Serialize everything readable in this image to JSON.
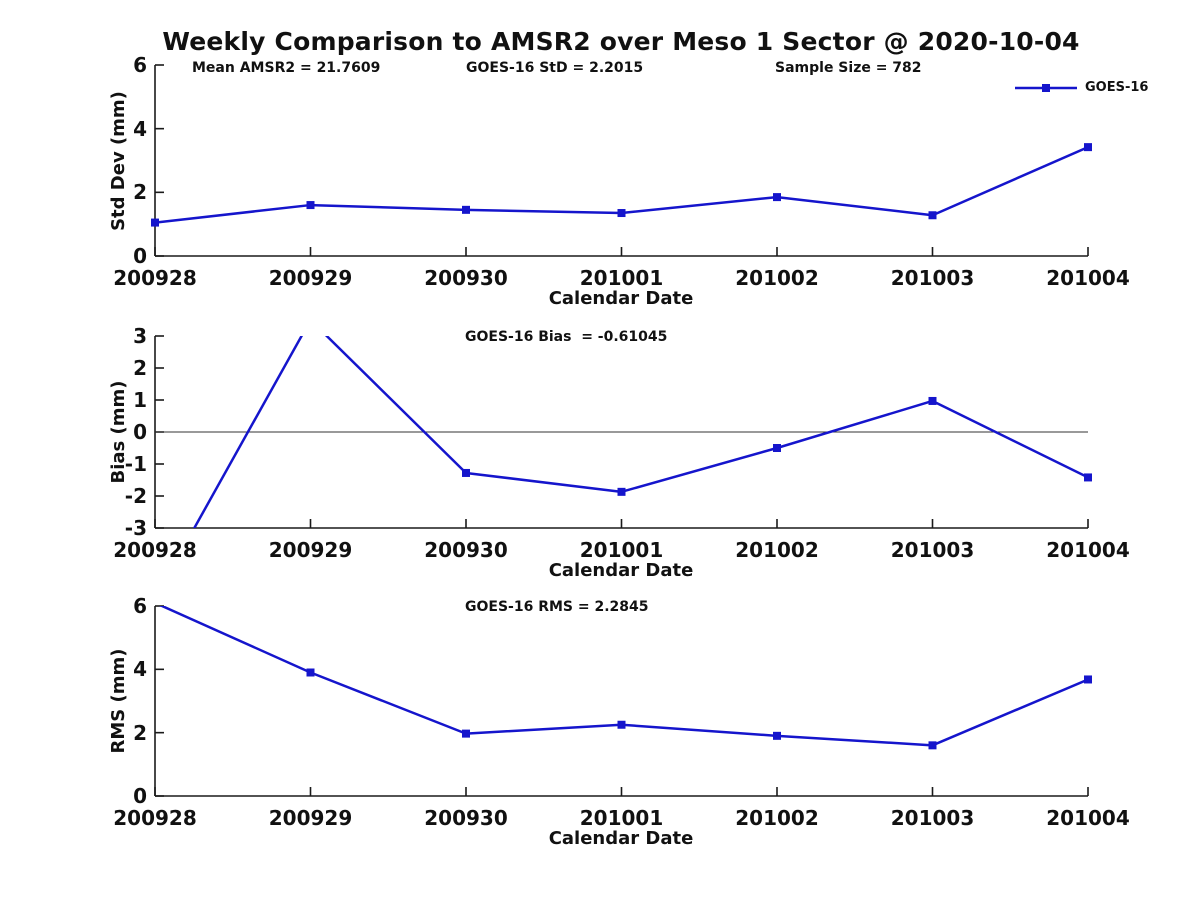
{
  "figure": {
    "title": "Weekly Comparison to AMSR2 over Meso 1 Sector @ 2020-10-04",
    "background": "#ffffff",
    "colors": {
      "line": "#1515cc",
      "axis": "#1a1a1a",
      "text": "#111111",
      "zero_line": "#333333"
    },
    "legend": {
      "label": "GOES-16",
      "position": "top-right"
    }
  },
  "chart_data": [
    {
      "name": "std-dev-subplot",
      "type": "line",
      "categories": [
        "200928",
        "200929",
        "200930",
        "201001",
        "201002",
        "201003",
        "201004"
      ],
      "series": [
        {
          "name": "GOES-16",
          "values": [
            1.05,
            1.6,
            1.45,
            1.35,
            1.85,
            1.28,
            3.42
          ]
        }
      ],
      "xlabel": "Calendar Date",
      "ylabel": "Std Dev (mm)",
      "ylim": [
        0,
        6
      ],
      "yticks": [
        0,
        2,
        4,
        6
      ],
      "grid": false,
      "annotations": [
        "Mean AMSR2 = 21.7609",
        "GOES-16 StD = 2.2015",
        "Sample Size = 782"
      ]
    },
    {
      "name": "bias-subplot",
      "type": "line",
      "categories": [
        "200928",
        "200929",
        "200930",
        "201001",
        "201002",
        "201003",
        "201004"
      ],
      "series": [
        {
          "name": "GOES-16",
          "values": [
            -5.2,
            3.5,
            -1.28,
            -1.87,
            -0.5,
            0.97,
            -1.42
          ]
        }
      ],
      "xlabel": "Calendar Date",
      "ylabel": "Bias (mm)",
      "ylim": [
        -3,
        3
      ],
      "yticks": [
        3,
        2,
        1,
        0,
        -1,
        -2,
        -3
      ],
      "grid": false,
      "zero_line": true,
      "clipped_to_ylim": true,
      "annotations": [
        "GOES-16 Bias  = -0.61045"
      ]
    },
    {
      "name": "rms-subplot",
      "type": "line",
      "categories": [
        "200928",
        "200929",
        "200930",
        "201001",
        "201002",
        "201003",
        "201004"
      ],
      "series": [
        {
          "name": "GOES-16",
          "values": [
            6.1,
            3.9,
            1.97,
            2.25,
            1.9,
            1.6,
            3.68
          ]
        }
      ],
      "xlabel": "Calendar Date",
      "ylabel": "RMS (mm)",
      "ylim": [
        0,
        6
      ],
      "yticks": [
        0,
        2,
        4,
        6
      ],
      "grid": false,
      "clipped_to_ylim": true,
      "annotations": [
        "GOES-16 RMS = 2.2845"
      ]
    }
  ]
}
